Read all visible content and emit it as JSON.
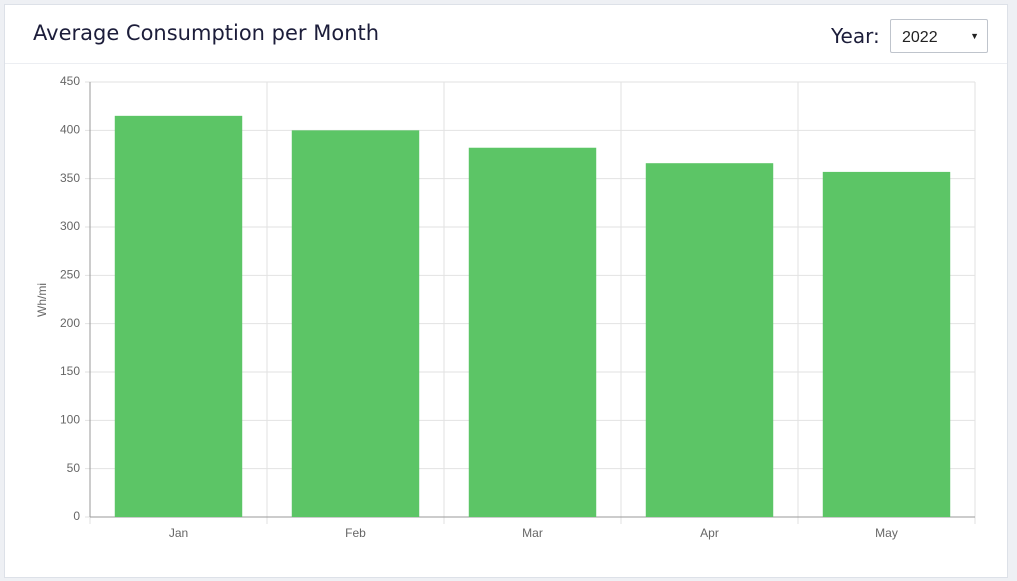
{
  "card": {
    "title": "Average Consumption per Month",
    "year_label": "Year:",
    "year_value": "2022"
  },
  "chart_data": {
    "type": "bar",
    "y_label": "Wh/mi",
    "categories": [
      "Jan",
      "Feb",
      "Mar",
      "Apr",
      "May"
    ],
    "values": [
      415,
      400,
      382,
      366,
      357
    ],
    "color": "#5cc566",
    "ylim": [
      0,
      450
    ],
    "yticks": [
      0,
      50,
      100,
      150,
      200,
      250,
      300,
      350,
      400,
      450
    ],
    "grid": true
  }
}
